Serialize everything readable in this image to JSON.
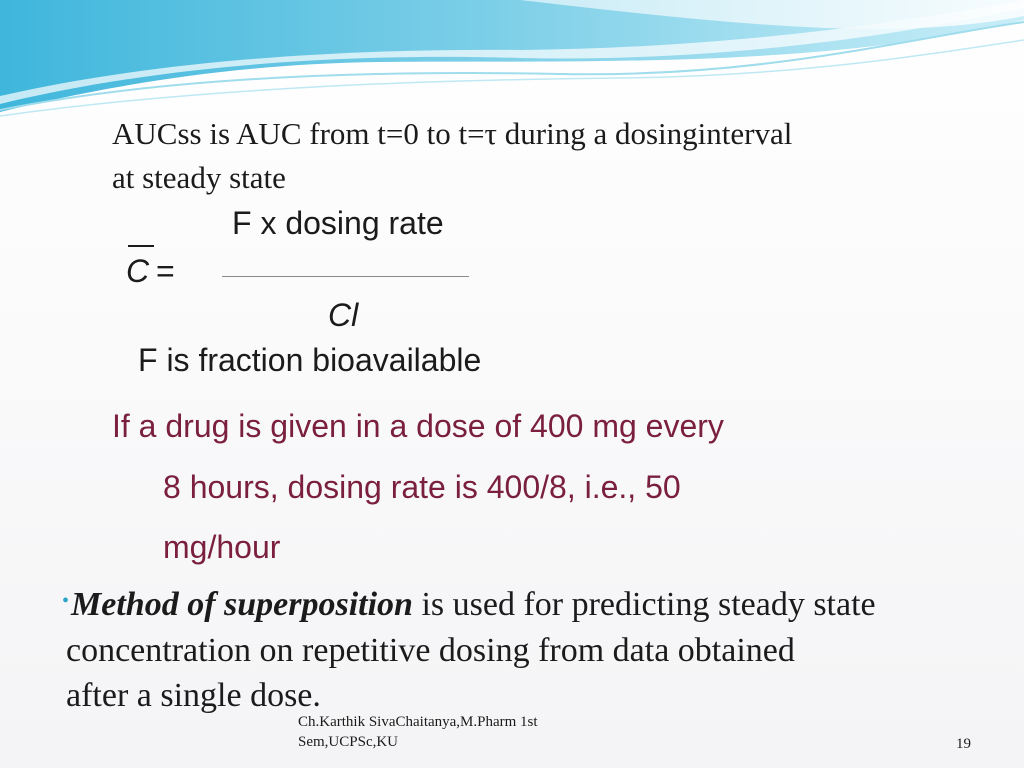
{
  "slide": {
    "definition_line1": "AUCss   is   AUC from t=0 to t=τ  during a dosinginterval",
    "definition_line2": "at steady state",
    "formula": {
      "lhs_symbol": "C",
      "equals": "=",
      "numerator": "F x dosing rate",
      "denominator": "Cl"
    },
    "f_note": "F is fraction bioavailable",
    "example_lines": [
      "If a drug is given in a dose of 400 mg every",
      "8 hours, dosing rate is 400/8, i.e., 50",
      "mg/hour"
    ],
    "bullet": {
      "marker": "•",
      "bold_text": "Method of superposition",
      "line1_rest": " is used for predicting steady state",
      "line2": "concentration on repetitive dosing from data obtained",
      "line3": "after  a single dose."
    },
    "footer_line1": "Ch.Karthik SivaChaitanya,M.Pharm 1st",
    "footer_line2": "Sem,UCPSc,KU",
    "page_number": "19"
  },
  "colors": {
    "accent_blue": "#2aa6c6",
    "example_text": "#7a1f3d",
    "body_text": "#1b1b1b"
  }
}
